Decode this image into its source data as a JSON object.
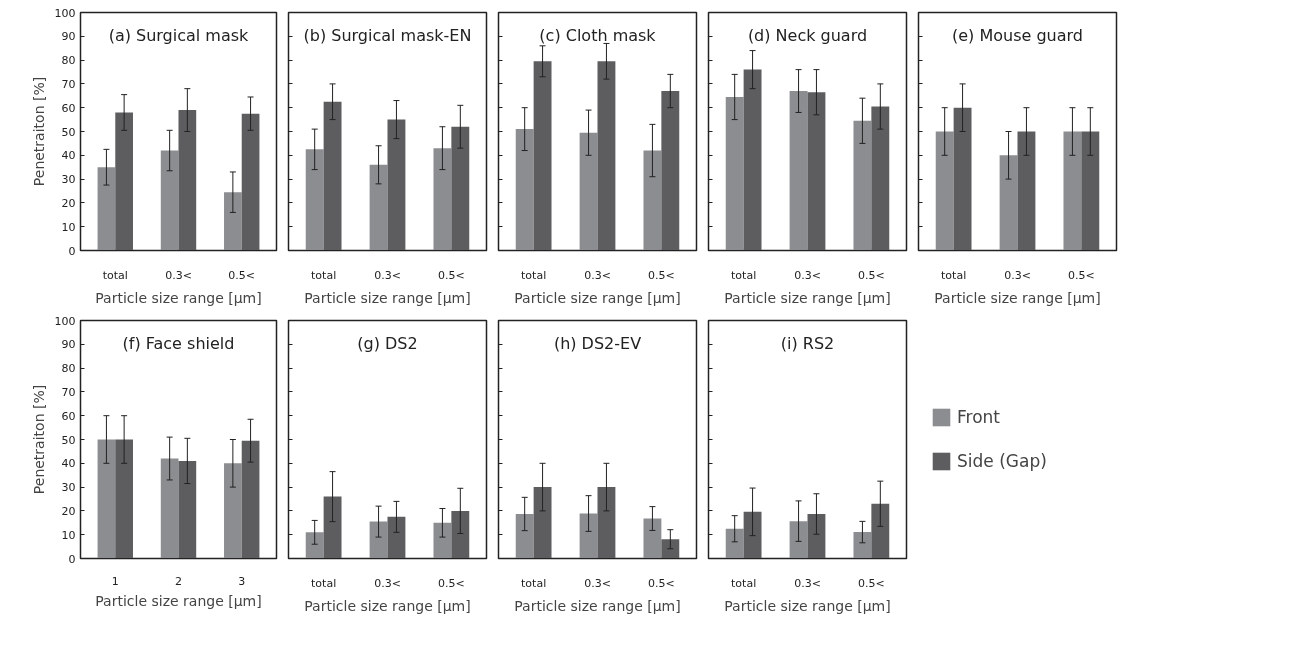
{
  "chart_data": [
    {
      "type": "bar",
      "title": "(a) Surgical mask",
      "categories": [
        "total",
        "0.3<",
        "0.5<"
      ],
      "xlabel": "Particle size range [μm]",
      "ylabel": "Penetraiton [%]",
      "ylim": [
        0,
        100
      ],
      "yticks": [
        0,
        10,
        20,
        30,
        40,
        50,
        60,
        70,
        80,
        90,
        100
      ],
      "grid": false,
      "series": [
        {
          "color": "#8c8d91",
          "values": [
            35,
            42,
            24.5
          ],
          "errors": [
            7.5,
            8.5,
            8.5
          ]
        },
        {
          "color": "#5d5d60",
          "values": [
            58,
            59,
            57.5
          ],
          "errors": [
            7.5,
            9,
            7
          ]
        }
      ]
    },
    {
      "type": "bar",
      "title": "(b) Surgical mask-EN",
      "categories": [
        "total",
        "0.3<",
        "0.5<"
      ],
      "xlabel": "Particle size range [μm]",
      "ylim": [
        0,
        100
      ],
      "yticks": [
        0,
        10,
        20,
        30,
        40,
        50,
        60,
        70,
        80,
        90,
        100
      ],
      "tick_labels": "x",
      "grid": false,
      "series": [
        {
          "color": "#8c8d91",
          "values": [
            42.5,
            36,
            43
          ],
          "errors": [
            8.5,
            8,
            9
          ]
        },
        {
          "color": "#5d5d60",
          "values": [
            62.5,
            55,
            52
          ],
          "errors": [
            7.5,
            8,
            9
          ]
        }
      ]
    },
    {
      "type": "bar",
      "title": "(c) Cloth mask",
      "categories": [
        "total",
        "0.3<",
        "0.5<"
      ],
      "xlabel": "Particle size range [μm]",
      "ylim": [
        0,
        100
      ],
      "yticks": [
        0,
        10,
        20,
        30,
        40,
        50,
        60,
        70,
        80,
        90,
        100
      ],
      "tick_labels": "x",
      "grid": false,
      "series": [
        {
          "color": "#8c8d91",
          "values": [
            51,
            49.5,
            42
          ],
          "errors": [
            9,
            9.5,
            11
          ]
        },
        {
          "color": "#5d5d60",
          "values": [
            79.5,
            79.5,
            67
          ],
          "errors": [
            6.5,
            7.5,
            7
          ]
        }
      ]
    },
    {
      "type": "bar",
      "title": "(d) Neck guard",
      "categories": [
        "total",
        "0.3<",
        "0.5<"
      ],
      "xlabel": "Particle size range [μm]",
      "ylim": [
        0,
        100
      ],
      "yticks": [
        0,
        10,
        20,
        30,
        40,
        50,
        60,
        70,
        80,
        90,
        100
      ],
      "tick_labels": "x",
      "grid": false,
      "series": [
        {
          "color": "#8c8d91",
          "values": [
            64.5,
            67,
            54.5
          ],
          "errors": [
            9.5,
            9,
            9.5
          ]
        },
        {
          "color": "#5d5d60",
          "values": [
            76,
            66.5,
            60.5
          ],
          "errors": [
            8,
            9.5,
            9.5
          ]
        }
      ]
    },
    {
      "type": "bar",
      "title": "(e) Mouse guard",
      "categories": [
        "total",
        "0.3<",
        "0.5<"
      ],
      "xlabel": "Particle size range [μm]",
      "ylim": [
        0,
        100
      ],
      "yticks": [
        0,
        10,
        20,
        30,
        40,
        50,
        60,
        70,
        80,
        90,
        100
      ],
      "tick_labels": "x",
      "grid": false,
      "series": [
        {
          "color": "#8c8d91",
          "values": [
            50,
            40,
            50
          ],
          "errors": [
            10,
            10,
            10
          ]
        },
        {
          "color": "#5d5d60",
          "values": [
            60,
            50,
            50
          ],
          "errors": [
            10,
            10,
            10
          ]
        }
      ]
    },
    {
      "type": "bar",
      "title": "(f) Face shield",
      "categories": [
        "1",
        "2",
        "3"
      ],
      "xlabel": "Particle size range [μm]",
      "ylabel": "Penetraiton [%]",
      "ylim": [
        0,
        100
      ],
      "yticks": [
        0,
        10,
        20,
        30,
        40,
        50,
        60,
        70,
        80,
        90,
        100
      ],
      "grid": false,
      "series": [
        {
          "color": "#8c8d91",
          "values": [
            50,
            42,
            40
          ],
          "errors": [
            10,
            9,
            10
          ]
        },
        {
          "color": "#5d5d60",
          "values": [
            50,
            41,
            49.5
          ],
          "errors": [
            10,
            9.5,
            9
          ]
        }
      ]
    },
    {
      "type": "bar",
      "title": "(g) DS2",
      "categories": [
        "total",
        "0.3<",
        "0.5<"
      ],
      "xlabel": "Particle size range [μm]",
      "ylim": [
        0,
        100
      ],
      "yticks": [
        0,
        10,
        20,
        30,
        40,
        50,
        60,
        70,
        80,
        90,
        100
      ],
      "tick_labels": "x",
      "grid": false,
      "series": [
        {
          "color": "#8c8d91",
          "values": [
            11,
            15.5,
            15
          ],
          "errors": [
            5,
            6.5,
            6
          ]
        },
        {
          "color": "#5d5d60",
          "values": [
            26,
            17.5,
            20
          ],
          "errors": [
            10.5,
            6.5,
            9.5
          ]
        }
      ]
    },
    {
      "type": "bar",
      "title": "(h) DS2-EV",
      "categories": [
        "total",
        "0.3<",
        "0.5<"
      ],
      "xlabel": "Particle size range [μm]",
      "ylim": [
        0,
        100
      ],
      "yticks": [
        0,
        10,
        20,
        30,
        40,
        50,
        60,
        70,
        80,
        90,
        100
      ],
      "tick_labels": "x",
      "grid": false,
      "series": [
        {
          "color": "#8c8d91",
          "values": [
            18.7,
            18.9,
            16.8
          ],
          "errors": [
            7,
            7.5,
            5
          ]
        },
        {
          "color": "#5d5d60",
          "values": [
            30,
            30,
            8.1
          ],
          "errors": [
            10,
            10,
            4
          ]
        }
      ]
    },
    {
      "type": "bar",
      "title": "(i) RS2",
      "categories": [
        "total",
        "0.3<",
        "0.5<"
      ],
      "xlabel": "Particle size range [μm]",
      "ylim": [
        0,
        100
      ],
      "yticks": [
        0,
        10,
        20,
        30,
        40,
        50,
        60,
        70,
        80,
        90,
        100
      ],
      "tick_labels": "x",
      "grid": false,
      "legend": "right",
      "series": [
        {
          "name": "Front",
          "color": "#8c8d91",
          "values": [
            12.5,
            15.7,
            11.1
          ],
          "errors": [
            5.5,
            8.5,
            4.5
          ]
        },
        {
          "name": "Side (Gap)",
          "color": "#5d5d60",
          "values": [
            19.6,
            18.7,
            23
          ],
          "errors": [
            10,
            8.5,
            9.5
          ]
        }
      ]
    }
  ]
}
